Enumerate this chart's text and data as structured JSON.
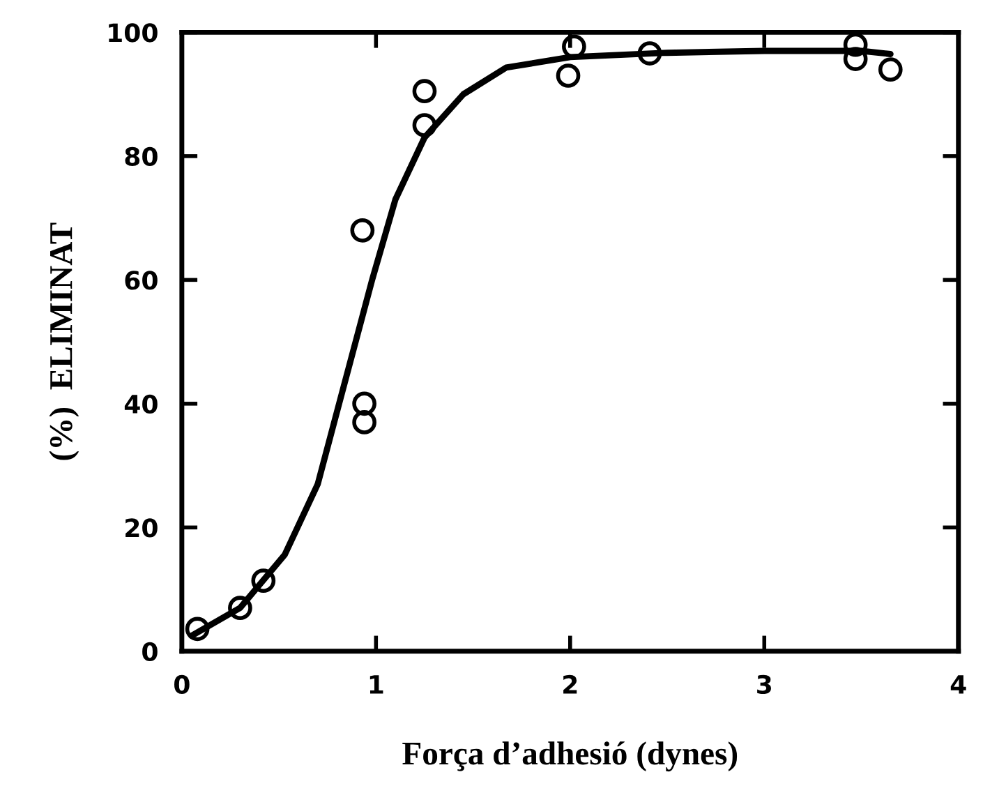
{
  "chart_data": {
    "type": "scatter",
    "xlabel": "Força d’adhesió (dynes)",
    "ylabel": "(%)  ELIMINAT",
    "xlim": [
      0,
      4
    ],
    "ylim": [
      0,
      100
    ],
    "xticks": [
      0,
      1,
      2,
      3,
      4
    ],
    "yticks": [
      0,
      20,
      40,
      60,
      80,
      100
    ],
    "grid": false,
    "legend": false,
    "series": [
      {
        "marker": "circle",
        "color": "#000000",
        "x": [
          0.08,
          0.3,
          0.42,
          0.93,
          0.94,
          0.94,
          1.25,
          1.25,
          1.99,
          2.02,
          2.41,
          3.47,
          3.47,
          3.65
        ],
        "values": [
          3.6,
          7,
          11.4,
          68,
          40,
          37,
          90.5,
          85,
          93,
          97.7,
          96.6,
          95.7,
          98,
          94
        ]
      },
      {
        "type": "line",
        "marker": "none",
        "color": "#000000",
        "line_style": "solid",
        "x": [
          0.05,
          0.3,
          0.53,
          0.7,
          0.81,
          0.98,
          1.1,
          1.25,
          1.45,
          1.67,
          2,
          2.5,
          3,
          3.5,
          3.65
        ],
        "values": [
          2.5,
          7,
          15.6,
          27,
          40,
          60,
          73,
          83,
          90,
          94.3,
          96,
          96.7,
          97,
          97,
          96.5
        ]
      }
    ]
  }
}
